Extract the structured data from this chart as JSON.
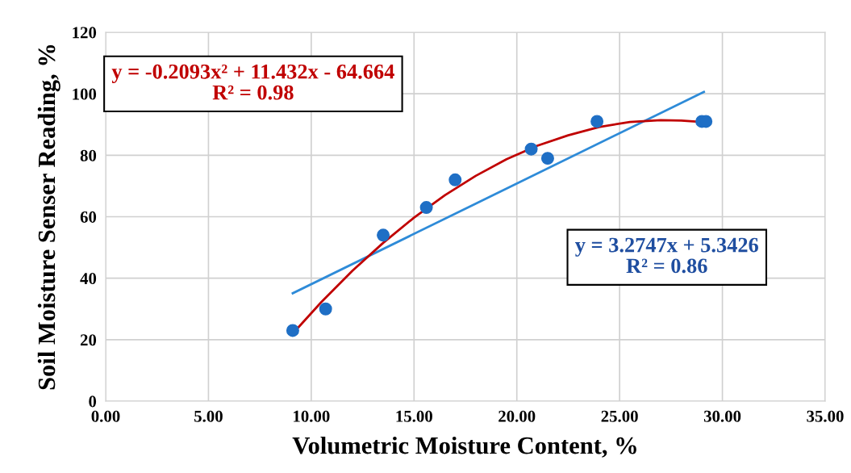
{
  "chart_data": {
    "type": "scatter",
    "xlabel": "Volumetric Moisture Content, %",
    "ylabel": "Soil Moisture Senser Reading, %",
    "series": [
      {
        "marker": "circle",
        "color": "#1f6fc5",
        "x": [
          9.1,
          10.7,
          13.5,
          15.6,
          17.0,
          20.7,
          21.5,
          23.9,
          29.0,
          29.2
        ],
        "values": [
          23,
          30,
          54,
          63,
          72,
          82,
          79,
          91,
          91,
          91
        ]
      },
      {
        "type": "line",
        "color": "#2e8bd8",
        "x": [
          9.1,
          29.1
        ],
        "values": [
          35.1,
          100.6
        ]
      },
      {
        "type": "line",
        "color": "#c00000",
        "x": [
          9.1,
          10.5,
          12,
          13.5,
          15,
          16.5,
          18,
          19.5,
          21,
          22.5,
          24,
          25.5,
          27,
          28,
          29.1
        ],
        "values": [
          22.0,
          32.3,
          42.4,
          51.5,
          59.7,
          67.0,
          73.3,
          78.7,
          83.1,
          86.5,
          89.2,
          90.8,
          91.4,
          91.3,
          90.8
        ]
      }
    ],
    "xlim": [
      0,
      35
    ],
    "ylim": [
      0,
      120
    ],
    "xticks": [
      {
        "value": 0,
        "label": "0.00"
      },
      {
        "value": 5,
        "label": "5.00"
      },
      {
        "value": 10,
        "label": "10.00"
      },
      {
        "value": 15,
        "label": "15.00"
      },
      {
        "value": 20,
        "label": "20.00"
      },
      {
        "value": 25,
        "label": "25.00"
      },
      {
        "value": 30,
        "label": "30.00"
      },
      {
        "value": 35,
        "label": "35.00"
      }
    ],
    "yticks": [
      0,
      20,
      40,
      60,
      80,
      100,
      120
    ],
    "grid": true,
    "annotations": [
      "y = -0.2093x² + 11.432x - 64.664\nR² = 0.98",
      "y = 3.2747x + 5.3426\nR² = 0.86"
    ]
  }
}
